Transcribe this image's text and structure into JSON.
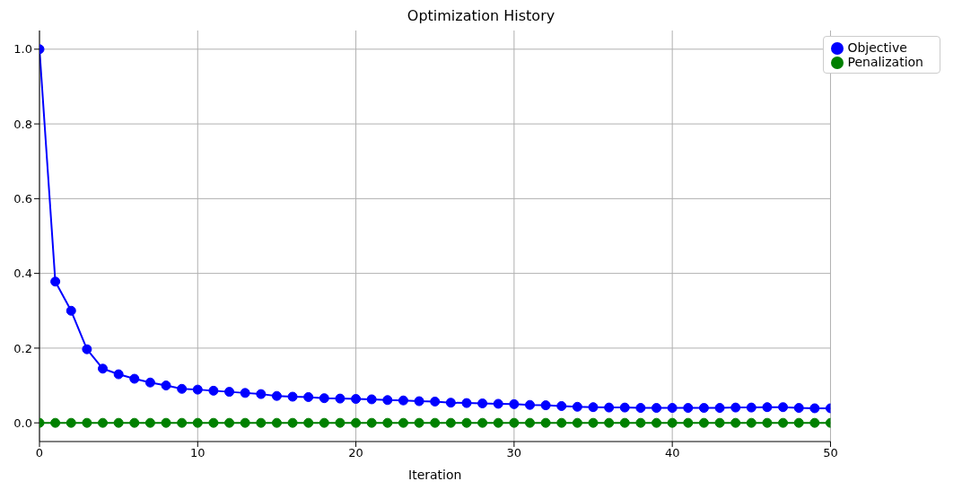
{
  "chart_data": {
    "type": "line",
    "title": "Optimization History",
    "xlabel": "Iteration",
    "x": [
      0,
      1,
      2,
      3,
      4,
      5,
      6,
      7,
      8,
      9,
      10,
      11,
      12,
      13,
      14,
      15,
      16,
      17,
      18,
      19,
      20,
      21,
      22,
      23,
      24,
      25,
      26,
      27,
      28,
      29,
      30,
      31,
      32,
      33,
      34,
      35,
      36,
      37,
      38,
      39,
      40,
      41,
      42,
      43,
      44,
      45,
      46,
      47,
      48,
      49,
      50
    ],
    "series": [
      {
        "name": "Objective",
        "color": "#0000ff",
        "values": [
          1.0,
          0.378,
          0.3,
          0.197,
          0.145,
          0.13,
          0.118,
          0.108,
          0.1,
          0.091,
          0.089,
          0.086,
          0.083,
          0.08,
          0.077,
          0.072,
          0.07,
          0.069,
          0.066,
          0.065,
          0.064,
          0.063,
          0.061,
          0.06,
          0.058,
          0.057,
          0.054,
          0.053,
          0.052,
          0.051,
          0.05,
          0.048,
          0.047,
          0.045,
          0.043,
          0.042,
          0.041,
          0.041,
          0.04,
          0.04,
          0.04,
          0.04,
          0.04,
          0.04,
          0.041,
          0.041,
          0.042,
          0.042,
          0.04,
          0.039,
          0.039
        ]
      },
      {
        "name": "Penalization",
        "color": "#008000",
        "values": [
          0,
          0,
          0,
          0,
          0,
          0,
          0,
          0,
          0,
          0,
          0,
          0,
          0,
          0,
          0,
          0,
          0,
          0,
          0,
          0,
          0,
          0,
          0,
          0,
          0,
          0,
          0,
          0,
          0,
          0,
          0,
          0,
          0,
          0,
          0,
          0,
          0,
          0,
          0,
          0,
          0,
          0,
          0,
          0,
          0,
          0,
          0,
          0,
          0,
          0,
          0
        ]
      }
    ],
    "xlim": [
      0,
      50
    ],
    "xticks": [
      0,
      10,
      20,
      30,
      40,
      50
    ],
    "ylim": [
      -0.05,
      1.05
    ],
    "yticks": [
      {
        "value": 0,
        "label": "0.0"
      },
      {
        "value": 0.2,
        "label": "0.2"
      },
      {
        "value": 0.4,
        "label": "0.4"
      },
      {
        "value": 0.6,
        "label": "0.6"
      },
      {
        "value": 0.8,
        "label": "0.8"
      },
      {
        "value": 1.0,
        "label": "1.0"
      }
    ],
    "grid": true,
    "legend": "top right",
    "marker": "circle",
    "line_style": "solid"
  }
}
